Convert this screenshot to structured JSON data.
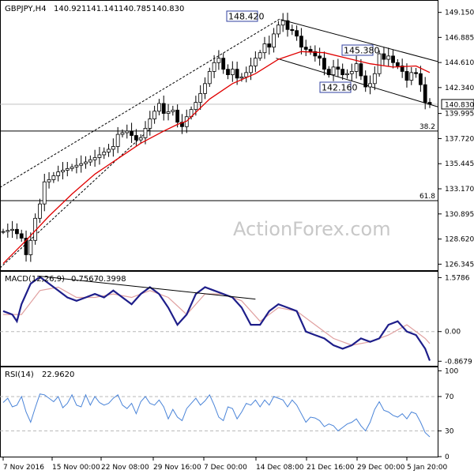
{
  "chart_data": [
    {
      "type": "candlestick",
      "title": "GBPJPY,H4",
      "header_values": [
        "140.921",
        "141.141",
        "140.785",
        "140.830"
      ],
      "last_price": 140.83,
      "ylim": [
        125.8,
        150.2
      ],
      "y_ticks": [
        149.15,
        146.885,
        144.61,
        142.34,
        139.995,
        137.72,
        135.445,
        133.17,
        130.895,
        128.62,
        126.345
      ],
      "y_tick_labels": [
        "149.150",
        "146.885",
        "144.610",
        "142.340",
        "139.995",
        "137.720",
        "135.445",
        "133.170",
        "130.895",
        "128.620",
        "126.345"
      ],
      "levels": [
        {
          "label": "38.2",
          "value": 138.4
        },
        {
          "label": "61.8",
          "value": 132.1
        }
      ],
      "annotations": [
        {
          "label": "148.420",
          "value": 148.42
        },
        {
          "label": "145.380",
          "value": 145.38
        },
        {
          "label": "142.160",
          "value": 142.16
        }
      ],
      "price_path": [
        [
          0,
          129.3
        ],
        [
          2,
          129.5
        ],
        [
          4,
          128.7
        ],
        [
          5,
          127.2
        ],
        [
          6,
          128.5
        ],
        [
          7,
          130.5
        ],
        [
          8,
          131.8
        ],
        [
          9,
          133.8
        ],
        [
          10,
          134.0
        ],
        [
          12,
          134.7
        ],
        [
          14,
          135.0
        ],
        [
          16,
          135.3
        ],
        [
          18,
          135.6
        ],
        [
          20,
          136.0
        ],
        [
          22,
          136.5
        ],
        [
          24,
          137.0
        ],
        [
          25,
          138.1
        ],
        [
          27,
          138.4
        ],
        [
          29,
          137.6
        ],
        [
          30,
          137.8
        ],
        [
          32,
          139.5
        ],
        [
          34,
          140.9
        ],
        [
          35,
          140.0
        ],
        [
          37,
          140.3
        ],
        [
          38,
          139.2
        ],
        [
          39,
          138.8
        ],
        [
          40,
          139.7
        ],
        [
          42,
          141.0
        ],
        [
          43,
          141.8
        ],
        [
          44,
          142.7
        ],
        [
          45,
          143.8
        ],
        [
          46,
          144.6
        ],
        [
          47,
          145.0
        ],
        [
          48,
          144.0
        ],
        [
          49,
          143.5
        ],
        [
          50,
          144.0
        ],
        [
          51,
          143.2
        ],
        [
          52,
          143.3
        ],
        [
          53,
          143.7
        ],
        [
          54,
          144.3
        ],
        [
          55,
          145.0
        ],
        [
          56,
          145.5
        ],
        [
          57,
          146.3
        ],
        [
          58,
          146.0
        ],
        [
          59,
          147.2
        ],
        [
          60,
          148.0
        ],
        [
          61,
          148.4
        ],
        [
          62,
          147.6
        ],
        [
          63,
          147.5
        ],
        [
          64,
          147.0
        ],
        [
          65,
          146.0
        ],
        [
          66,
          145.8
        ],
        [
          67,
          145.6
        ],
        [
          68,
          145.2
        ],
        [
          69,
          145.0
        ],
        [
          70,
          144.0
        ],
        [
          71,
          143.5
        ],
        [
          72,
          144.2
        ],
        [
          73,
          144.0
        ],
        [
          74,
          143.5
        ],
        [
          75,
          143.6
        ],
        [
          76,
          143.8
        ],
        [
          77,
          144.5
        ],
        [
          78,
          143.4
        ],
        [
          79,
          142.4
        ],
        [
          80,
          142.7
        ],
        [
          81,
          143.6
        ],
        [
          82,
          145.4
        ],
        [
          83,
          144.9
        ],
        [
          84,
          145.2
        ],
        [
          85,
          144.6
        ],
        [
          86,
          144.3
        ],
        [
          87,
          143.8
        ],
        [
          88,
          143.0
        ],
        [
          89,
          143.7
        ],
        [
          90,
          143.6
        ],
        [
          91,
          142.6
        ],
        [
          92,
          141.0
        ],
        [
          93,
          140.83
        ]
      ],
      "ma_path": [
        [
          0,
          126.4
        ],
        [
          5,
          128.5
        ],
        [
          10,
          130.7
        ],
        [
          15,
          132.7
        ],
        [
          20,
          134.5
        ],
        [
          25,
          135.9
        ],
        [
          30,
          137.3
        ],
        [
          35,
          138.4
        ],
        [
          38,
          139.0
        ],
        [
          40,
          139.3
        ],
        [
          45,
          141.3
        ],
        [
          50,
          142.7
        ],
        [
          55,
          143.6
        ],
        [
          60,
          144.9
        ],
        [
          65,
          145.6
        ],
        [
          70,
          145.5
        ],
        [
          75,
          145.0
        ],
        [
          80,
          144.5
        ],
        [
          85,
          144.2
        ],
        [
          90,
          144.3
        ],
        [
          93,
          143.7
        ]
      ]
    },
    {
      "type": "line",
      "title": "MACD(12,26,9)",
      "header_values": [
        "0.7567",
        "-0.3998"
      ],
      "ylim": [
        -1.0,
        1.75
      ],
      "y_ticks": [
        1.5786,
        0.0,
        -0.8679
      ],
      "y_tick_labels": [
        "1.5786",
        "0.00",
        "-0.8679"
      ],
      "series": [
        {
          "values": [
            [
              0,
              0.6
            ],
            [
              2,
              0.5
            ],
            [
              3,
              0.3
            ],
            [
              4,
              0.8
            ],
            [
              6,
              1.4
            ],
            [
              8,
              1.6
            ],
            [
              10,
              1.4
            ],
            [
              12,
              1.2
            ],
            [
              14,
              1.0
            ],
            [
              16,
              0.9
            ],
            [
              18,
              1.0
            ],
            [
              20,
              1.1
            ],
            [
              22,
              1.0
            ],
            [
              24,
              1.2
            ],
            [
              26,
              1.0
            ],
            [
              28,
              0.8
            ],
            [
              30,
              1.1
            ],
            [
              32,
              1.3
            ],
            [
              34,
              1.1
            ],
            [
              36,
              0.7
            ],
            [
              38,
              0.2
            ],
            [
              40,
              0.5
            ],
            [
              42,
              1.1
            ],
            [
              44,
              1.3
            ],
            [
              46,
              1.2
            ],
            [
              48,
              1.1
            ],
            [
              50,
              1.0
            ],
            [
              52,
              0.7
            ],
            [
              54,
              0.2
            ],
            [
              56,
              0.2
            ],
            [
              58,
              0.6
            ],
            [
              60,
              0.8
            ],
            [
              62,
              0.7
            ],
            [
              64,
              0.6
            ],
            [
              66,
              0.0
            ],
            [
              68,
              -0.1
            ],
            [
              70,
              -0.2
            ],
            [
              72,
              -0.4
            ],
            [
              74,
              -0.5
            ],
            [
              76,
              -0.4
            ],
            [
              78,
              -0.2
            ],
            [
              80,
              -0.3
            ],
            [
              82,
              -0.2
            ],
            [
              84,
              0.2
            ],
            [
              86,
              0.3
            ],
            [
              88,
              0.0
            ],
            [
              90,
              -0.1
            ],
            [
              92,
              -0.5
            ],
            [
              93,
              -0.85
            ]
          ]
        },
        {
          "values": [
            [
              0,
              0.5
            ],
            [
              4,
              0.5
            ],
            [
              8,
              1.2
            ],
            [
              12,
              1.3
            ],
            [
              16,
              1.0
            ],
            [
              20,
              1.0
            ],
            [
              24,
              1.1
            ],
            [
              28,
              1.0
            ],
            [
              32,
              1.2
            ],
            [
              36,
              1.0
            ],
            [
              40,
              0.5
            ],
            [
              44,
              1.1
            ],
            [
              48,
              1.1
            ],
            [
              52,
              0.9
            ],
            [
              56,
              0.3
            ],
            [
              60,
              0.7
            ],
            [
              64,
              0.6
            ],
            [
              68,
              0.2
            ],
            [
              72,
              -0.2
            ],
            [
              76,
              -0.4
            ],
            [
              80,
              -0.3
            ],
            [
              84,
              -0.1
            ],
            [
              88,
              0.2
            ],
            [
              92,
              -0.2
            ],
            [
              93,
              -0.35
            ]
          ]
        }
      ]
    },
    {
      "type": "line",
      "title": "RSI(14)",
      "header_values": [
        "22.9620"
      ],
      "ylim": [
        0,
        104
      ],
      "y_ticks": [
        100,
        70,
        30,
        0
      ],
      "y_tick_labels": [
        "100",
        "70",
        "30",
        "0"
      ],
      "levels": [
        70,
        30
      ],
      "series": [
        {
          "values": [
            [
              0,
              63
            ],
            [
              1,
              68
            ],
            [
              2,
              58
            ],
            [
              3,
              60
            ],
            [
              4,
              70
            ],
            [
              5,
              52
            ],
            [
              6,
              40
            ],
            [
              7,
              57
            ],
            [
              8,
              73
            ],
            [
              9,
              72
            ],
            [
              10,
              68
            ],
            [
              11,
              64
            ],
            [
              12,
              70
            ],
            [
              13,
              57
            ],
            [
              14,
              62
            ],
            [
              15,
              72
            ],
            [
              16,
              60
            ],
            [
              17,
              58
            ],
            [
              18,
              72
            ],
            [
              19,
              60
            ],
            [
              20,
              70
            ],
            [
              21,
              63
            ],
            [
              22,
              60
            ],
            [
              23,
              62
            ],
            [
              24,
              68
            ],
            [
              25,
              72
            ],
            [
              26,
              60
            ],
            [
              27,
              56
            ],
            [
              28,
              62
            ],
            [
              29,
              50
            ],
            [
              30,
              64
            ],
            [
              31,
              70
            ],
            [
              32,
              62
            ],
            [
              33,
              60
            ],
            [
              34,
              66
            ],
            [
              35,
              58
            ],
            [
              36,
              44
            ],
            [
              37,
              55
            ],
            [
              38,
              46
            ],
            [
              39,
              42
            ],
            [
              40,
              56
            ],
            [
              41,
              62
            ],
            [
              42,
              68
            ],
            [
              43,
              60
            ],
            [
              44,
              65
            ],
            [
              45,
              72
            ],
            [
              46,
              60
            ],
            [
              47,
              46
            ],
            [
              48,
              42
            ],
            [
              49,
              58
            ],
            [
              50,
              56
            ],
            [
              51,
              44
            ],
            [
              52,
              52
            ],
            [
              53,
              62
            ],
            [
              54,
              60
            ],
            [
              55,
              66
            ],
            [
              56,
              58
            ],
            [
              57,
              66
            ],
            [
              58,
              60
            ],
            [
              59,
              70
            ],
            [
              60,
              68
            ],
            [
              61,
              66
            ],
            [
              62,
              58
            ],
            [
              63,
              66
            ],
            [
              64,
              60
            ],
            [
              65,
              50
            ],
            [
              66,
              40
            ],
            [
              67,
              46
            ],
            [
              68,
              45
            ],
            [
              69,
              42
            ],
            [
              70,
              35
            ],
            [
              71,
              38
            ],
            [
              72,
              36
            ],
            [
              73,
              30
            ],
            [
              74,
              34
            ],
            [
              75,
              38
            ],
            [
              76,
              40
            ],
            [
              77,
              44
            ],
            [
              78,
              36
            ],
            [
              79,
              30
            ],
            [
              80,
              40
            ],
            [
              81,
              55
            ],
            [
              82,
              64
            ],
            [
              83,
              54
            ],
            [
              84,
              52
            ],
            [
              85,
              48
            ],
            [
              86,
              46
            ],
            [
              87,
              50
            ],
            [
              88,
              44
            ],
            [
              89,
              52
            ],
            [
              90,
              50
            ],
            [
              91,
              40
            ],
            [
              92,
              28
            ],
            [
              93,
              23
            ]
          ]
        }
      ]
    }
  ],
  "x_tick_labels": [
    "7 Nov 2016",
    "15 Nov 00:00",
    "22 Nov 08:00",
    "29 Nov 16:00",
    "7 Dec 00:00",
    "14 Dec 08:00",
    "21 Dec 16:00",
    "29 Dec 00:00",
    "5 Jan 20:00"
  ],
  "watermark": "ActionForex.com",
  "colors": {
    "candle": "#000000",
    "ma": "#e00000",
    "macd": "#1e1e8a",
    "signal": "#e0a0a0",
    "rsi": "#4a84d8",
    "grid": "#b8b8b8"
  }
}
